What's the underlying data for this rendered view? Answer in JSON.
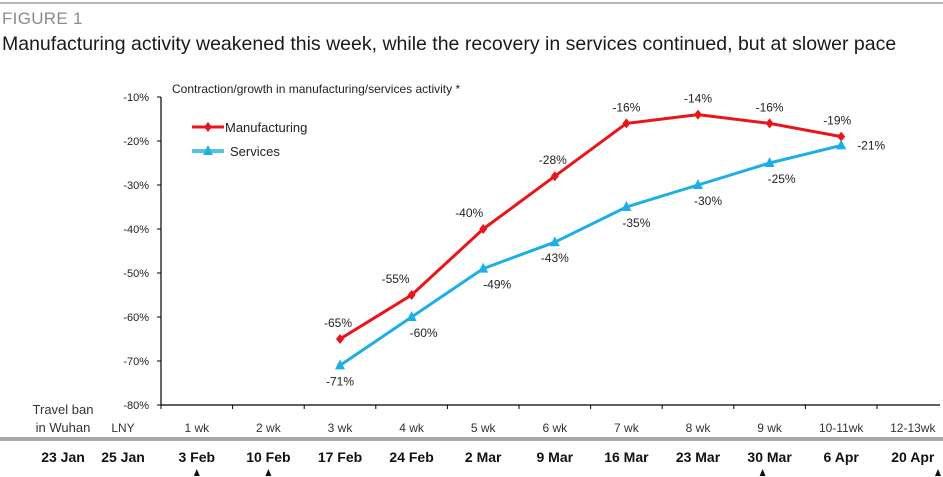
{
  "figure": {
    "label": "FIGURE 1",
    "title": "Manufacturing activity weakened this week, while the recovery in services continued, but at slower pace"
  },
  "chart_data": {
    "type": "line",
    "title": "Contraction/growth in manufacturing/services activity *",
    "xlabel": "",
    "ylabel": "",
    "ylim": [
      -80,
      -10
    ],
    "yticks": [
      "-10%",
      "-20%",
      "-30%",
      "-40%",
      "-50%",
      "-60%",
      "-70%",
      "-80%"
    ],
    "ytick_values": [
      -10,
      -20,
      -30,
      -40,
      -50,
      -60,
      -70,
      -80
    ],
    "grid": false,
    "legend_position": "top-left",
    "categories": [
      "LNY",
      "1 wk",
      "2 wk",
      "3 wk",
      "4 wk",
      "5 wk",
      "6 wk",
      "7 wk",
      "8 wk",
      "9 wk",
      "10-11wk",
      "12-13wk"
    ],
    "dates": [
      "25 Jan",
      "3 Feb",
      "10 Feb",
      "17 Feb",
      "24 Feb",
      "2 Mar",
      "9 Mar",
      "16 Mar",
      "23 Mar",
      "30 Mar",
      "6 Apr",
      "20 Apr"
    ],
    "pre_label": {
      "row1": "Travel ban",
      "row2": "in Wuhan",
      "date": "23 Jan"
    },
    "arrow_dates": [
      "3 Feb",
      "10 Feb",
      "30 Mar",
      "20 Apr"
    ],
    "series": [
      {
        "name": "Manufacturing",
        "color": "#e8161b",
        "marker": "diamond",
        "values": [
          null,
          null,
          null,
          -65,
          -55,
          -40,
          -28,
          -16,
          -14,
          -16,
          -19,
          null
        ],
        "labels": [
          null,
          null,
          null,
          "-65%",
          "-55%",
          "-40%",
          "-28%",
          "-16%",
          "-14%",
          "-16%",
          "-19%",
          null
        ]
      },
      {
        "name": "Services",
        "color": "#1eaee6",
        "marker": "triangle",
        "values": [
          null,
          null,
          null,
          -71,
          -60,
          -49,
          -43,
          -35,
          -30,
          -25,
          -21,
          null
        ],
        "labels": [
          null,
          null,
          null,
          "-71%",
          "-60%",
          "-49%",
          "-43%",
          "-35%",
          "-30%",
          "-25%",
          "-21%",
          null
        ]
      }
    ]
  }
}
